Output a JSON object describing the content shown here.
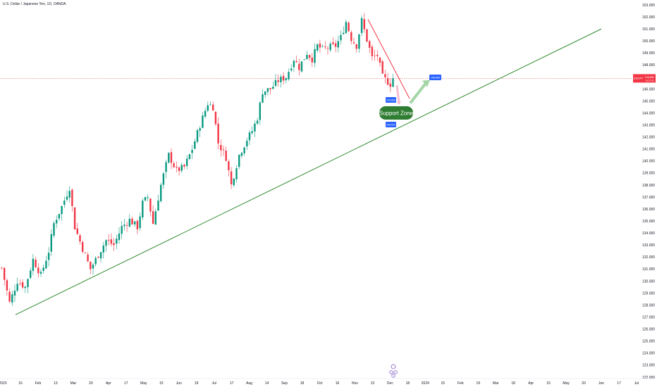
{
  "header": {
    "title": "U.S. Dollar / Japanese Yen, 1D, OANDA"
  },
  "colors": {
    "up": "#089981",
    "down": "#f23645",
    "trendline": "#2e8b2e",
    "resistance_line": "#f23645",
    "projection_arrow": "#a5d6a7",
    "support_zone_fill": "#2e7d32",
    "price_tag_blue": "#2962ff",
    "price_tag_red": "#f23645",
    "event_marker": "#7e57c2"
  },
  "price_tags": {
    "current_label": "USDJPY",
    "current_value": "146.882",
    "current_sub": "16:37:25",
    "upper_target": "146.899",
    "zone_top": "144.826",
    "zone_bottom": "143.972"
  },
  "annotations": {
    "support_zone": "Support Zone"
  },
  "chart_data": {
    "type": "candlestick",
    "title": "U.S. Dollar / Japanese Yen, 1D, OANDA",
    "ylim": [
      122.0,
      153.0
    ],
    "y_ticks": [
      "153.000",
      "152.000",
      "151.000",
      "150.000",
      "149.000",
      "148.000",
      "147.000",
      "146.000",
      "145.000",
      "144.000",
      "143.000",
      "142.000",
      "141.000",
      "140.000",
      "139.000",
      "138.000",
      "137.000",
      "136.000",
      "135.000",
      "134.000",
      "133.000",
      "132.000",
      "131.000",
      "130.000",
      "129.000",
      "128.000",
      "127.000",
      "126.000",
      "125.000",
      "124.000",
      "123.000",
      "122.000"
    ],
    "x_ticks": [
      "2023",
      "16",
      "Feb",
      "13",
      "Mar",
      "20",
      "Apr",
      "17",
      "May",
      "15",
      "Jun",
      "19",
      "Jul",
      "17",
      "Aug",
      "14",
      "Sep",
      "18",
      "Oct",
      "16",
      "Nov",
      "13",
      "Dec",
      "18",
      "2024",
      "15",
      "Feb",
      "19",
      "Mar",
      "18",
      "Apr",
      "15",
      "May",
      "20",
      "Jun",
      "17",
      "Jul"
    ],
    "grid": false,
    "legend": "none",
    "anchors": [
      [
        0,
        131.1
      ],
      [
        3,
        128.2
      ],
      [
        6,
        130.0
      ],
      [
        9,
        129.5
      ],
      [
        12,
        131.8
      ],
      [
        15,
        130.5
      ],
      [
        18,
        132.5
      ],
      [
        20,
        134.8
      ],
      [
        23,
        136.2
      ],
      [
        26,
        137.8
      ],
      [
        28,
        134.5
      ],
      [
        31,
        132.7
      ],
      [
        34,
        131.0
      ],
      [
        37,
        132.2
      ],
      [
        40,
        133.4
      ],
      [
        43,
        133.0
      ],
      [
        46,
        134.5
      ],
      [
        49,
        135.1
      ],
      [
        52,
        134.5
      ],
      [
        54,
        136.5
      ],
      [
        56,
        137.0
      ],
      [
        58,
        134.8
      ],
      [
        61,
        138.0
      ],
      [
        64,
        140.5
      ],
      [
        67,
        139.2
      ],
      [
        70,
        139.5
      ],
      [
        73,
        141.0
      ],
      [
        76,
        143.0
      ],
      [
        79,
        144.8
      ],
      [
        81,
        144.5
      ],
      [
        83,
        141.5
      ],
      [
        86,
        140.3
      ],
      [
        88,
        138.0
      ],
      [
        91,
        140.5
      ],
      [
        94,
        141.8
      ],
      [
        96,
        142.5
      ],
      [
        98,
        143.6
      ],
      [
        100,
        145.8
      ],
      [
        103,
        146.0
      ],
      [
        106,
        146.7
      ],
      [
        109,
        147.0
      ],
      [
        112,
        148.5
      ],
      [
        114,
        147.8
      ],
      [
        117,
        149.0
      ],
      [
        119,
        148.5
      ],
      [
        121,
        149.6
      ],
      [
        123,
        149.3
      ],
      [
        126,
        149.5
      ],
      [
        128,
        149.6
      ],
      [
        130,
        150.3
      ],
      [
        132,
        151.6
      ],
      [
        134,
        150.2
      ],
      [
        136,
        149.6
      ],
      [
        138,
        151.7
      ],
      [
        140,
        150.1
      ],
      [
        142,
        148.6
      ],
      [
        144,
        148.8
      ],
      [
        146,
        147.0
      ],
      [
        149,
        146.4
      ],
      [
        150,
        146.9
      ]
    ],
    "candle_count": 151,
    "trendline": {
      "from": [
        "2023-01-16",
        127.2
      ],
      "to": [
        "2024-06-03",
        151.0
      ]
    },
    "resistance_line": {
      "from": [
        "2023-11-13",
        151.8
      ],
      "to": [
        "2023-12-18",
        145.2
      ]
    },
    "projection": {
      "from": 145.0,
      "to": 146.899
    },
    "support_zone": {
      "top": 144.826,
      "bottom": 143.972
    },
    "current_price": 146.882
  }
}
